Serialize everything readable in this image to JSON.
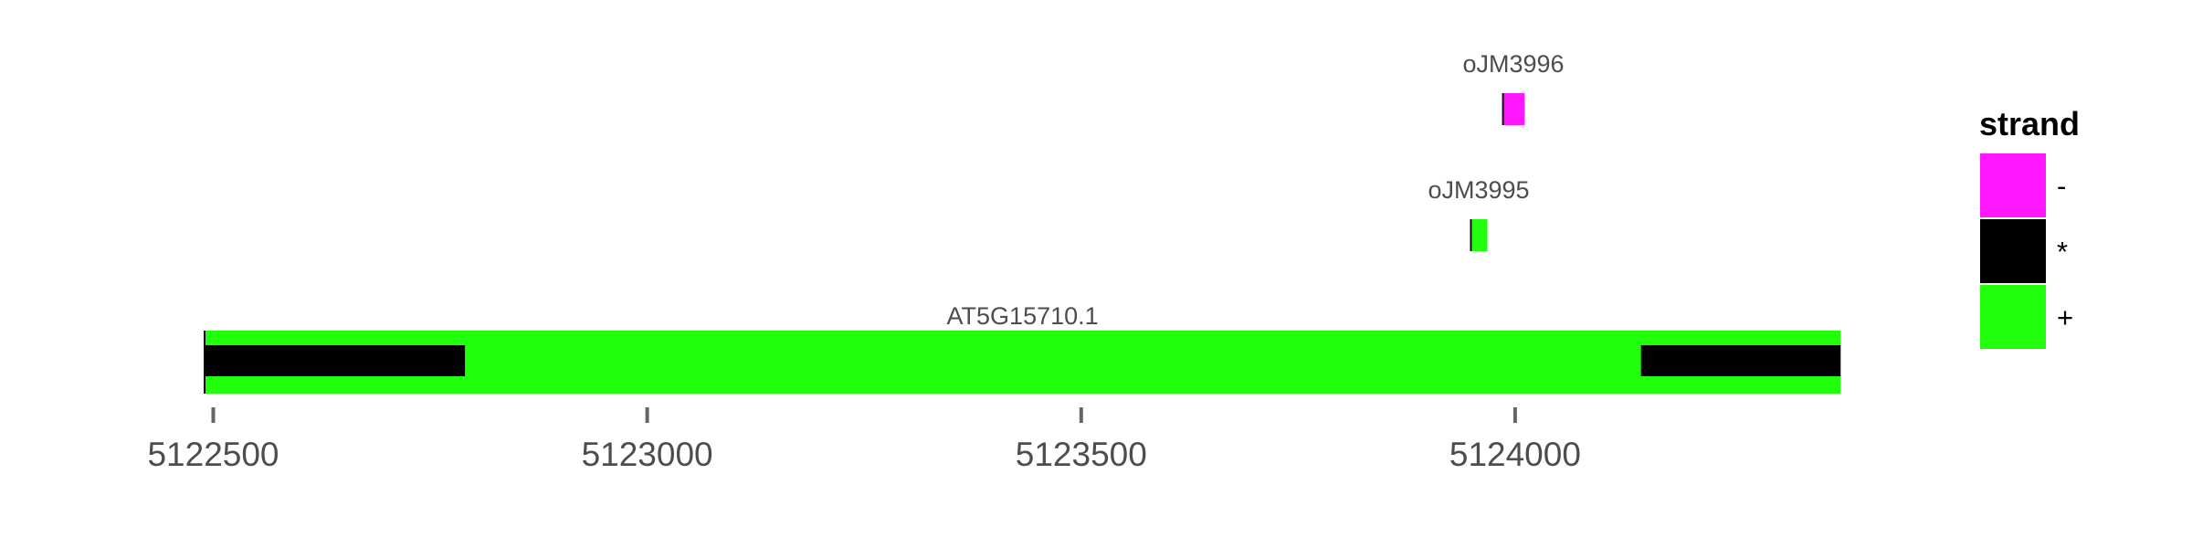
{
  "chart_data": {
    "type": "gene-track",
    "xlim": [
      5122490,
      5124380
    ],
    "x_ticks": [
      5122500,
      5123000,
      5123500,
      5124000
    ],
    "x_tick_labels": [
      "5122500",
      "5123000",
      "5123500",
      "5124000"
    ],
    "grid": false,
    "features": [
      {
        "name": "AT5G15710.1",
        "strand": "+",
        "row": 1,
        "start": 5122490,
        "end": 5124375,
        "segments": [
          {
            "start": 5122490,
            "end": 5124375,
            "strand": "+",
            "part": "transcript"
          },
          {
            "start": 5122490,
            "end": 5122790,
            "strand": "*",
            "part": "utr"
          },
          {
            "start": 5124145,
            "end": 5124375,
            "strand": "*",
            "part": "utr"
          }
        ]
      },
      {
        "name": "oJM3995",
        "strand": "+",
        "row": 2,
        "start": 5123948,
        "end": 5123968,
        "segments": [
          {
            "start": 5123948,
            "end": 5123950,
            "strand": "*",
            "part": "edge"
          },
          {
            "start": 5123950,
            "end": 5123968,
            "strand": "+",
            "part": "primer"
          }
        ]
      },
      {
        "name": "oJM3996",
        "strand": "-",
        "row": 3,
        "start": 5123985,
        "end": 5124011,
        "segments": [
          {
            "start": 5123985,
            "end": 5123987,
            "strand": "*",
            "part": "edge"
          },
          {
            "start": 5123987,
            "end": 5124011,
            "strand": "-",
            "part": "primer"
          }
        ]
      }
    ],
    "legend": {
      "title": "strand",
      "placement": "right",
      "entries": [
        {
          "label": "-",
          "color": "#ff17ff"
        },
        {
          "label": "*",
          "color": "#000000"
        },
        {
          "label": "+",
          "color": "#22ff0d"
        }
      ]
    }
  },
  "colors": {
    "plus": "#22ff0d",
    "minus": "#ff17ff",
    "star": "#000000",
    "tick": "#666666",
    "text": "#4d4d4d"
  }
}
